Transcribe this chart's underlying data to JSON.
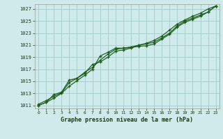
{
  "title": "Graphe pression niveau de la mer (hPa)",
  "bg_color": "#ceeaea",
  "grid_color": "#aacece",
  "line_color": "#1a5c1a",
  "xlim": [
    -0.5,
    23.5
  ],
  "ylim": [
    1010.5,
    1027.8
  ],
  "yticks": [
    1011,
    1013,
    1015,
    1017,
    1019,
    1021,
    1023,
    1025,
    1027
  ],
  "xticks": [
    0,
    1,
    2,
    3,
    4,
    5,
    6,
    7,
    8,
    9,
    10,
    11,
    12,
    13,
    14,
    15,
    16,
    17,
    18,
    19,
    20,
    21,
    22,
    23
  ],
  "series1_x": [
    0,
    1,
    2,
    3,
    4,
    5,
    6,
    7,
    8,
    9,
    10,
    11,
    12,
    13,
    14,
    15,
    16,
    17,
    18,
    19,
    20,
    21,
    22,
    23
  ],
  "series1_y": [
    1011.2,
    1011.8,
    1012.5,
    1013.1,
    1014.8,
    1015.5,
    1016.5,
    1017.3,
    1018.5,
    1019.5,
    1020.3,
    1020.5,
    1020.7,
    1021.0,
    1021.2,
    1021.5,
    1022.2,
    1023.0,
    1024.2,
    1025.0,
    1025.5,
    1026.0,
    1026.5,
    1027.5
  ],
  "series2_x": [
    0,
    1,
    2,
    3,
    4,
    5,
    6,
    7,
    8,
    9,
    10,
    11,
    12,
    13,
    14,
    15,
    16,
    17,
    18,
    19,
    20,
    21,
    22,
    23
  ],
  "series2_y": [
    1011.0,
    1011.5,
    1012.2,
    1013.0,
    1014.2,
    1015.1,
    1016.0,
    1017.0,
    1019.2,
    1019.8,
    1020.5,
    1020.5,
    1020.6,
    1020.8,
    1020.9,
    1021.2,
    1022.0,
    1022.8,
    1024.0,
    1024.8,
    1025.3,
    1025.8,
    1026.5,
    1027.5
  ],
  "series3_x": [
    0,
    1,
    2,
    3,
    4,
    5,
    6,
    7,
    8,
    9,
    10,
    11,
    12,
    13,
    14,
    15,
    16,
    17,
    18,
    19,
    20,
    21,
    22,
    23
  ],
  "series3_y": [
    1011.0,
    1011.5,
    1012.8,
    1013.2,
    1015.2,
    1015.5,
    1016.3,
    1017.8,
    1018.2,
    1019.0,
    1020.0,
    1020.2,
    1020.5,
    1021.0,
    1021.3,
    1021.8,
    1022.5,
    1023.5,
    1024.5,
    1025.2,
    1025.8,
    1026.3,
    1027.0,
    1027.5
  ]
}
